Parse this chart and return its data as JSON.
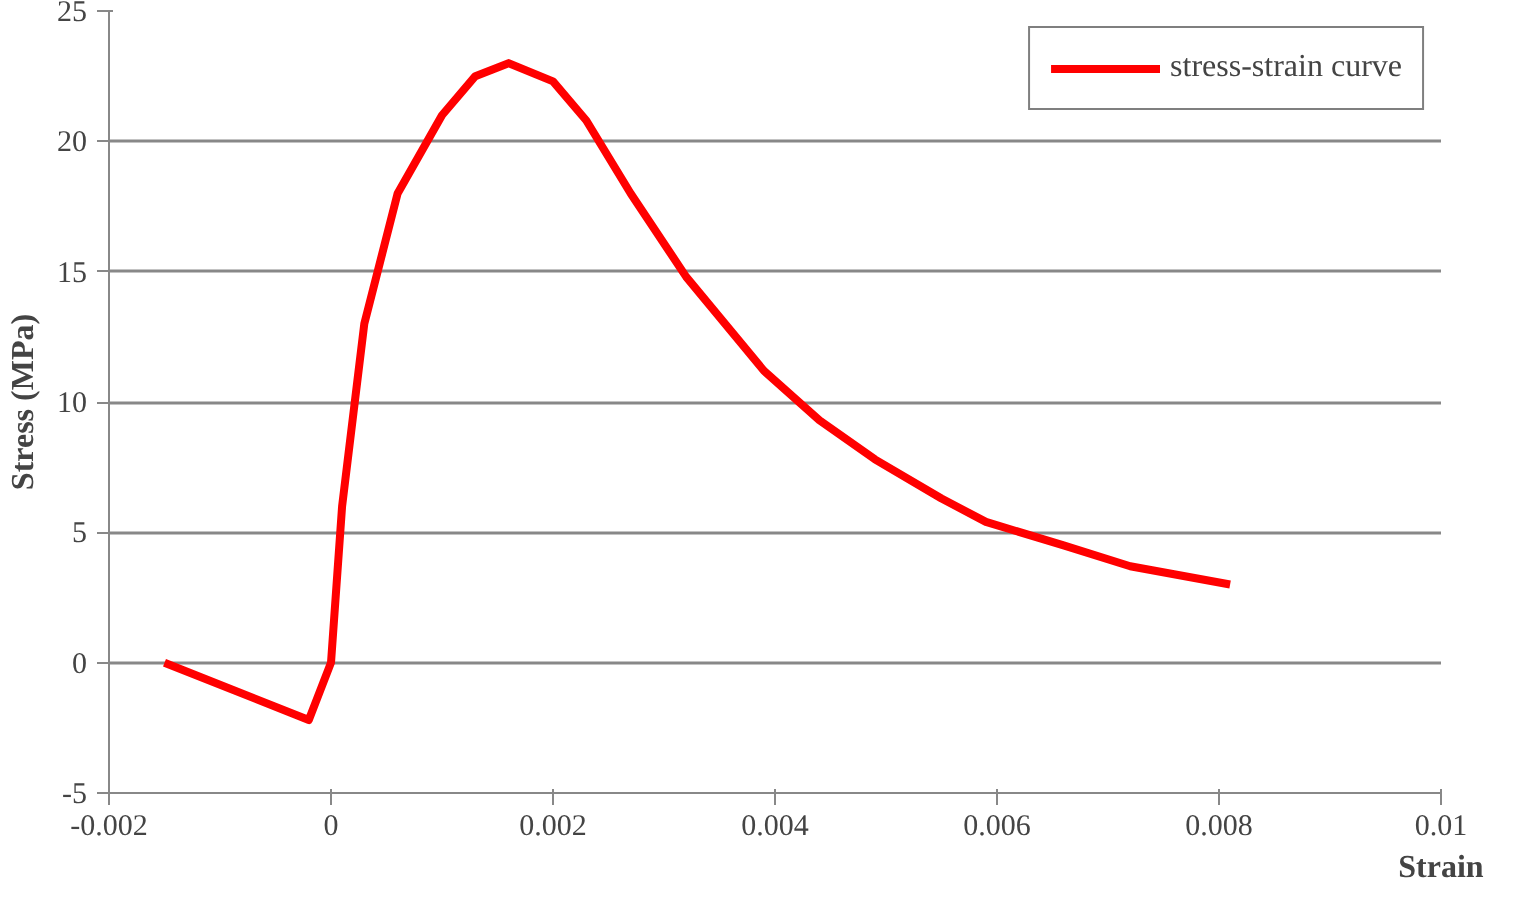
{
  "chart_data": {
    "type": "line",
    "xlabel": "Strain",
    "ylabel": "Stress (MPa)",
    "xlim": [
      -0.002,
      0.01
    ],
    "xticks": [
      -0.002,
      0,
      0.002,
      0.004,
      0.006,
      0.008,
      0.01
    ],
    "ylim": [
      -5,
      25
    ],
    "yticks": [
      -5,
      0,
      5,
      10,
      15,
      20,
      25
    ],
    "grid": "y",
    "legend": "top right",
    "marker": "none",
    "line_style": "solid",
    "series": [
      {
        "name": "stress-strain curve",
        "color": "#ff0000",
        "x": [
          -0.0015,
          -0.0002,
          0,
          0.0001,
          0.0003,
          0.0006,
          0.001,
          0.0013,
          0.0016,
          0.002,
          0.0023,
          0.0027,
          0.0032,
          0.0039,
          0.0044,
          0.0049,
          0.0055,
          0.0059,
          0.0066,
          0.0072,
          0.0081
        ],
        "values": [
          0,
          -2.2,
          0,
          6,
          13,
          18,
          21,
          22.5,
          23,
          22.3,
          20.8,
          18,
          14.8,
          11.2,
          9.3,
          7.8,
          6.3,
          5.4,
          4.5,
          3.7,
          3
        ]
      }
    ]
  }
}
